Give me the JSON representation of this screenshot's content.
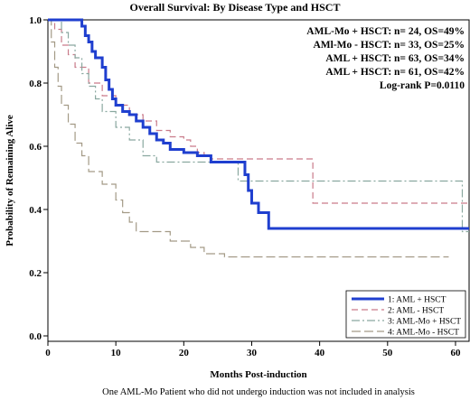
{
  "chart_data": {
    "type": "line",
    "title": "Overall Survival: By Disease Type and HSCT",
    "xlabel": "Months Post-induction",
    "ylabel": "Probability of Remaining Alive",
    "footnote": "One AML-Mo Patient who did not undergo induction was not included in analysis",
    "xlim": [
      0,
      62
    ],
    "ylim": [
      0,
      1
    ],
    "x_ticks": [
      0,
      10,
      20,
      30,
      40,
      50,
      60
    ],
    "x_tick_labels": [
      "0",
      "10",
      "20",
      "30",
      "40",
      "50",
      "60"
    ],
    "y_ticks": [
      0.0,
      0.2,
      0.4,
      0.6,
      0.8,
      1.0
    ],
    "y_tick_labels": [
      "0.0",
      "0.2",
      "0.4",
      "0.6",
      "0.8",
      "1.0"
    ],
    "grid": false,
    "legend_position": "bottom-right",
    "annotations": [
      "AML-Mo + HSCT: n= 24, OS=49%",
      "AMl-Mo - HSCT: n= 33, OS=25%",
      "AML + HSCT: n= 63, OS=34%",
      "AML + HSCT: n= 61, OS=42%",
      "Log-rank P=0.0110"
    ],
    "series": [
      {
        "name": "1: AML + HSCT",
        "color": "#1f3fcf",
        "style": "solid",
        "x": [
          0,
          5,
          5.5,
          6,
          6.5,
          7,
          8,
          8.5,
          9,
          9.5,
          10,
          11,
          12,
          13,
          14,
          15,
          16,
          17,
          18,
          20,
          22,
          24,
          26,
          29,
          29.5,
          30,
          31,
          32.5,
          62
        ],
        "y": [
          1.0,
          0.98,
          0.95,
          0.93,
          0.9,
          0.88,
          0.85,
          0.81,
          0.78,
          0.75,
          0.73,
          0.71,
          0.7,
          0.68,
          0.66,
          0.64,
          0.62,
          0.61,
          0.59,
          0.58,
          0.57,
          0.55,
          0.55,
          0.51,
          0.46,
          0.42,
          0.39,
          0.34,
          0.34
        ]
      },
      {
        "name": "2: AML - HSCT",
        "color": "#c97b8a",
        "style": "dashed",
        "x": [
          0,
          1,
          2,
          3,
          4,
          6,
          8,
          10,
          12,
          14,
          16,
          18,
          20,
          21,
          22,
          23,
          24,
          26,
          28,
          39,
          62
        ],
        "y": [
          1.0,
          0.97,
          0.92,
          0.89,
          0.85,
          0.8,
          0.76,
          0.73,
          0.7,
          0.68,
          0.65,
          0.63,
          0.62,
          0.6,
          0.58,
          0.57,
          0.56,
          0.56,
          0.56,
          0.42,
          0.42
        ]
      },
      {
        "name": "3: AML-Mo + HSCT",
        "color": "#8aa8a0",
        "style": "dashdot",
        "x": [
          0,
          2,
          3,
          4,
          5,
          6,
          7,
          8,
          10,
          12,
          14,
          16,
          20,
          25,
          28,
          60,
          61,
          62
        ],
        "y": [
          1.0,
          0.96,
          0.92,
          0.88,
          0.83,
          0.79,
          0.75,
          0.71,
          0.66,
          0.62,
          0.57,
          0.55,
          0.55,
          0.55,
          0.49,
          0.49,
          0.33,
          0.33
        ]
      },
      {
        "name": "4: AML-Mo - HSCT",
        "color": "#a39a86",
        "style": "longdash",
        "x": [
          0,
          0.5,
          1,
          1.5,
          2,
          3,
          4,
          5,
          6,
          8,
          10,
          11,
          12,
          13,
          15,
          18,
          21,
          23,
          26,
          59
        ],
        "y": [
          1.0,
          0.93,
          0.85,
          0.79,
          0.73,
          0.67,
          0.61,
          0.57,
          0.52,
          0.48,
          0.43,
          0.39,
          0.36,
          0.33,
          0.33,
          0.3,
          0.28,
          0.26,
          0.25,
          0.25
        ]
      }
    ]
  }
}
